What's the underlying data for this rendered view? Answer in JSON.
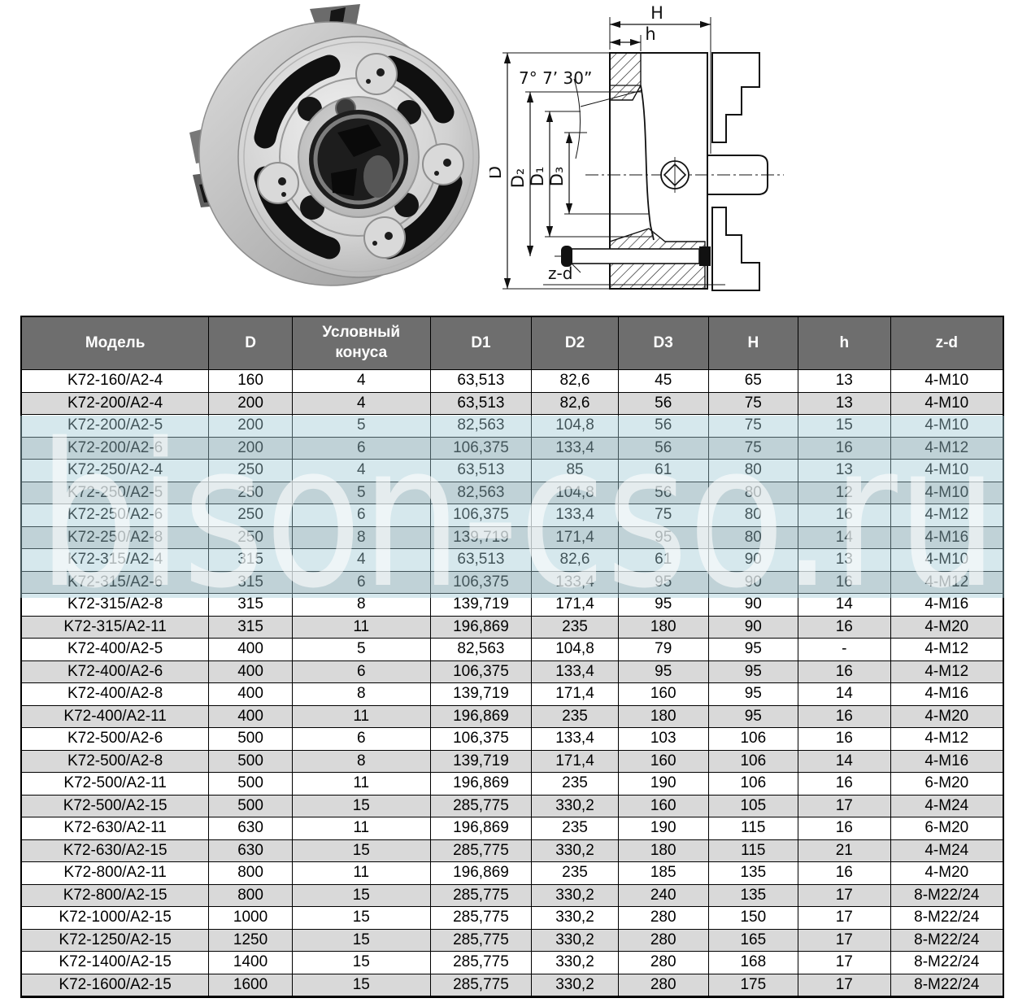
{
  "colors": {
    "page_bg": "#ffffff",
    "header_bg": "#6e6e6e",
    "header_text": "#ffffff",
    "row_stripe": "#d9d9d9",
    "grid_border": "#000000",
    "watermark_band": "#9ec7d4",
    "watermark_text": "#ffffff"
  },
  "watermark": {
    "text": "bison-cso.ru"
  },
  "drawing": {
    "labels": {
      "H": "H",
      "h": "h",
      "angle": "7° 7’ 30”",
      "D": "D",
      "D2": "D₂",
      "D1": "D₁",
      "D3": "D₃",
      "zd": "z-d"
    }
  },
  "table": {
    "columns": [
      "Модель",
      "D",
      "Условный конуса",
      "D1",
      "D2",
      "D3",
      "H",
      "h",
      "z-d"
    ],
    "rows": [
      [
        "K72-160/A2-4",
        "160",
        "4",
        "63,513",
        "82,6",
        "45",
        "65",
        "13",
        "4-M10"
      ],
      [
        "K72-200/A2-4",
        "200",
        "4",
        "63,513",
        "82,6",
        "56",
        "75",
        "13",
        "4-M10"
      ],
      [
        "K72-200/A2-5",
        "200",
        "5",
        "82,563",
        "104,8",
        "56",
        "75",
        "15",
        "4-M10"
      ],
      [
        "K72-200/A2-6",
        "200",
        "6",
        "106,375",
        "133,4",
        "56",
        "75",
        "16",
        "4-M12"
      ],
      [
        "K72-250/A2-4",
        "250",
        "4",
        "63,513",
        "85",
        "61",
        "80",
        "13",
        "4-M10"
      ],
      [
        "K72-250/A2-5",
        "250",
        "5",
        "82,563",
        "104,8",
        "56",
        "80",
        "12",
        "4-M10"
      ],
      [
        "K72-250/A2-6",
        "250",
        "6",
        "106,375",
        "133,4",
        "75",
        "80",
        "16",
        "4-M12"
      ],
      [
        "K72-250/A2-8",
        "250",
        "8",
        "139,719",
        "171,4",
        "95",
        "80",
        "14",
        "4-M16"
      ],
      [
        "K72-315/A2-4",
        "315",
        "4",
        "63,513",
        "82,6",
        "61",
        "90",
        "13",
        "4-M10"
      ],
      [
        "K72-315/A2-6",
        "315",
        "6",
        "106,375",
        "133,4",
        "95",
        "90",
        "16",
        "4-M12"
      ],
      [
        "K72-315/A2-8",
        "315",
        "8",
        "139,719",
        "171,4",
        "95",
        "90",
        "14",
        "4-M16"
      ],
      [
        "K72-315/A2-11",
        "315",
        "11",
        "196,869",
        "235",
        "180",
        "90",
        "16",
        "4-M20"
      ],
      [
        "K72-400/A2-5",
        "400",
        "5",
        "82,563",
        "104,8",
        "79",
        "95",
        "-",
        "4-M12"
      ],
      [
        "K72-400/A2-6",
        "400",
        "6",
        "106,375",
        "133,4",
        "95",
        "95",
        "16",
        "4-M12"
      ],
      [
        "K72-400/A2-8",
        "400",
        "8",
        "139,719",
        "171,4",
        "160",
        "95",
        "14",
        "4-M16"
      ],
      [
        "K72-400/A2-11",
        "400",
        "11",
        "196,869",
        "235",
        "180",
        "95",
        "16",
        "4-M20"
      ],
      [
        "K72-500/A2-6",
        "500",
        "6",
        "106,375",
        "133,4",
        "103",
        "106",
        "16",
        "4-M12"
      ],
      [
        "K72-500/A2-8",
        "500",
        "8",
        "139,719",
        "171,4",
        "160",
        "106",
        "14",
        "4-M16"
      ],
      [
        "K72-500/A2-11",
        "500",
        "11",
        "196,869",
        "235",
        "190",
        "106",
        "16",
        "6-M20"
      ],
      [
        "K72-500/A2-15",
        "500",
        "15",
        "285,775",
        "330,2",
        "160",
        "105",
        "17",
        "4-M24"
      ],
      [
        "K72-630/A2-11",
        "630",
        "11",
        "196,869",
        "235",
        "190",
        "115",
        "16",
        "6-M20"
      ],
      [
        "K72-630/A2-15",
        "630",
        "15",
        "285,775",
        "330,2",
        "180",
        "115",
        "21",
        "4-M24"
      ],
      [
        "K72-800/A2-11",
        "800",
        "11",
        "196,869",
        "235",
        "185",
        "135",
        "16",
        "4-M20"
      ],
      [
        "K72-800/A2-15",
        "800",
        "15",
        "285,775",
        "330,2",
        "240",
        "135",
        "17",
        "8-M22/24"
      ],
      [
        "K72-1000/A2-15",
        "1000",
        "15",
        "285,775",
        "330,2",
        "280",
        "150",
        "17",
        "8-M22/24"
      ],
      [
        "K72-1250/A2-15",
        "1250",
        "15",
        "285,775",
        "330,2",
        "280",
        "165",
        "17",
        "8-M22/24"
      ],
      [
        "K72-1400/A2-15",
        "1400",
        "15",
        "285,775",
        "330,2",
        "280",
        "168",
        "17",
        "8-M22/24"
      ],
      [
        "K72-1600/A2-15",
        "1600",
        "15",
        "285,775",
        "330,2",
        "280",
        "175",
        "17",
        "8-M22/24"
      ]
    ]
  }
}
